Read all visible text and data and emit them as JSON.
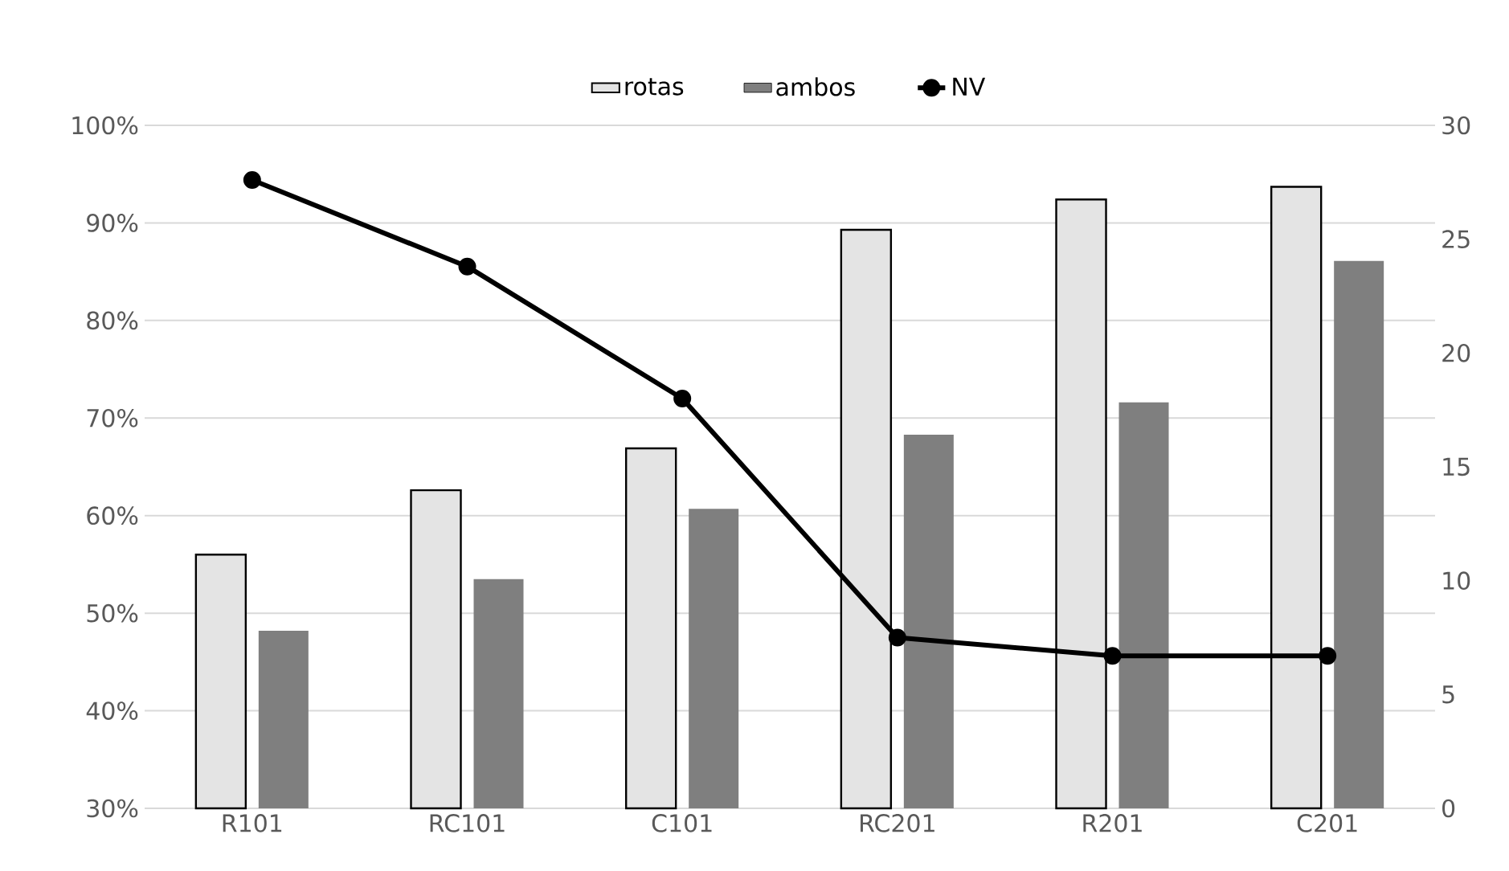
{
  "chart_data": {
    "type": "bar",
    "categories": [
      "R101",
      "RC101",
      "C101",
      "RC201",
      "R201",
      "C201"
    ],
    "series": [
      {
        "name": "rotas",
        "color": "#e4e4e4",
        "values": [
          56.0,
          62.6,
          66.9,
          89.3,
          92.4,
          93.7
        ]
      },
      {
        "name": "ambos",
        "color": "#7f7f7f",
        "values": [
          48.2,
          53.5,
          60.7,
          68.3,
          71.6,
          86.1
        ]
      },
      {
        "name": "NV",
        "type": "line",
        "axis": "y2",
        "color": "#000000",
        "marker": "circle",
        "values": [
          27.6,
          23.8,
          18.0,
          7.5,
          6.7,
          6.7
        ]
      }
    ],
    "ylim": [
      30,
      100
    ],
    "yticks": [
      {
        "value": 30,
        "label": "30%"
      },
      {
        "value": 40,
        "label": "40%"
      },
      {
        "value": 50,
        "label": "50%"
      },
      {
        "value": 60,
        "label": "60%"
      },
      {
        "value": 70,
        "label": "70%"
      },
      {
        "value": 80,
        "label": "80%"
      },
      {
        "value": 90,
        "label": "90%"
      },
      {
        "value": 100,
        "label": "100%"
      }
    ],
    "y2lim": [
      0,
      30
    ],
    "y2ticks": [
      0,
      5,
      10,
      15,
      20,
      25,
      30
    ],
    "grid": "y",
    "legend": "top"
  }
}
